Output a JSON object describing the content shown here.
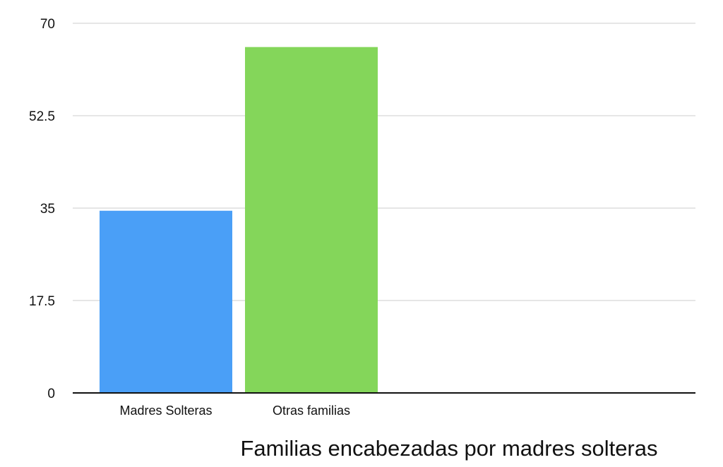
{
  "chart_data": {
    "type": "bar",
    "title": "Familias encabezadas por madres solteras",
    "categories": [
      "Madres Solteras",
      "Otras familias"
    ],
    "values": [
      34.5,
      65.5
    ],
    "colors": [
      "#4A9FF7",
      "#84D65A"
    ],
    "ylim": [
      0,
      70
    ],
    "yticks": [
      "0",
      "17.5",
      "35",
      "52.5",
      "70"
    ],
    "grid": true,
    "legend": "none"
  }
}
